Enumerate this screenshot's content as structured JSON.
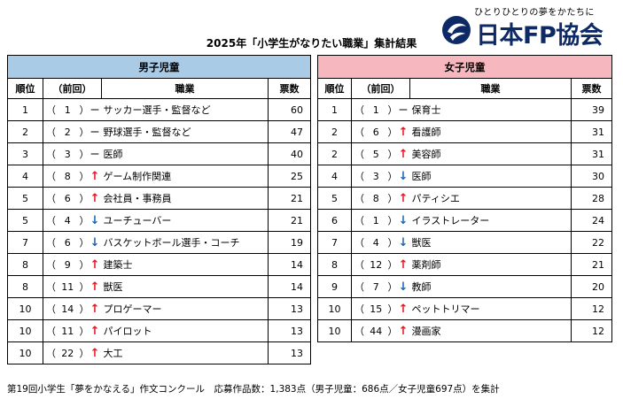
{
  "logo": {
    "tagline": "ひとりひとりの夢をかたちに",
    "name": "日本FP協会",
    "icon": "fp-association-logo",
    "color": "#0e2a66"
  },
  "title": "2025年「小学生がなりたい職業」集計結果",
  "columns": {
    "rank": "順位",
    "prev": "（前回）",
    "job": "職業",
    "votes": "票数"
  },
  "boys": {
    "label": "男子児童",
    "color": "#a9cbe6",
    "rows": [
      {
        "rank": "1",
        "prev": "1",
        "trend": "same",
        "job": "サッカー選手・監督など",
        "votes": "60"
      },
      {
        "rank": "2",
        "prev": "2",
        "trend": "same",
        "job": "野球選手・監督など",
        "votes": "47"
      },
      {
        "rank": "3",
        "prev": "3",
        "trend": "same",
        "job": "医師",
        "votes": "40"
      },
      {
        "rank": "4",
        "prev": "8",
        "trend": "up",
        "job": "ゲーム制作関連",
        "votes": "25"
      },
      {
        "rank": "5",
        "prev": "6",
        "trend": "up",
        "job": "会社員・事務員",
        "votes": "21"
      },
      {
        "rank": "5",
        "prev": "4",
        "trend": "down",
        "job": "ユーチューバー",
        "votes": "21"
      },
      {
        "rank": "7",
        "prev": "6",
        "trend": "down",
        "job": "バスケットボール選手・コーチ",
        "votes": "19"
      },
      {
        "rank": "8",
        "prev": "9",
        "trend": "up",
        "job": "建築士",
        "votes": "14"
      },
      {
        "rank": "8",
        "prev": "11",
        "trend": "up",
        "job": "獣医",
        "votes": "14"
      },
      {
        "rank": "10",
        "prev": "14",
        "trend": "up",
        "job": "プロゲーマー",
        "votes": "13"
      },
      {
        "rank": "10",
        "prev": "11",
        "trend": "up",
        "job": "パイロット",
        "votes": "13"
      },
      {
        "rank": "10",
        "prev": "22",
        "trend": "up",
        "job": "大工",
        "votes": "13"
      }
    ]
  },
  "girls": {
    "label": "女子児童",
    "color": "#f7b7bf",
    "rows": [
      {
        "rank": "1",
        "prev": "1",
        "trend": "same",
        "job": "保育士",
        "votes": "39"
      },
      {
        "rank": "2",
        "prev": "6",
        "trend": "up",
        "job": "看護師",
        "votes": "31"
      },
      {
        "rank": "2",
        "prev": "5",
        "trend": "up",
        "job": "美容師",
        "votes": "31"
      },
      {
        "rank": "4",
        "prev": "3",
        "trend": "down",
        "job": "医師",
        "votes": "30"
      },
      {
        "rank": "5",
        "prev": "8",
        "trend": "up",
        "job": "パティシエ",
        "votes": "28"
      },
      {
        "rank": "6",
        "prev": "1",
        "trend": "down",
        "job": "イラストレーター",
        "votes": "24"
      },
      {
        "rank": "7",
        "prev": "4",
        "trend": "down",
        "job": "獣医",
        "votes": "22"
      },
      {
        "rank": "8",
        "prev": "12",
        "trend": "up",
        "job": "薬剤師",
        "votes": "21"
      },
      {
        "rank": "9",
        "prev": "7",
        "trend": "down",
        "job": "教師",
        "votes": "20"
      },
      {
        "rank": "10",
        "prev": "15",
        "trend": "up",
        "job": "ペットトリマー",
        "votes": "12"
      },
      {
        "rank": "10",
        "prev": "44",
        "trend": "up",
        "job": "漫画家",
        "votes": "12"
      }
    ]
  },
  "trend_symbols": {
    "up": "↑",
    "down": "↓",
    "same": "ー"
  },
  "trend_colors": {
    "up": "#e8141f",
    "down": "#1b66b4",
    "same": "#000000"
  },
  "footnote": "第19回小学生「夢をかなえる」作文コンクール　応募作品数：1,383点（男子児童：686点／女子児童697点）を集計"
}
